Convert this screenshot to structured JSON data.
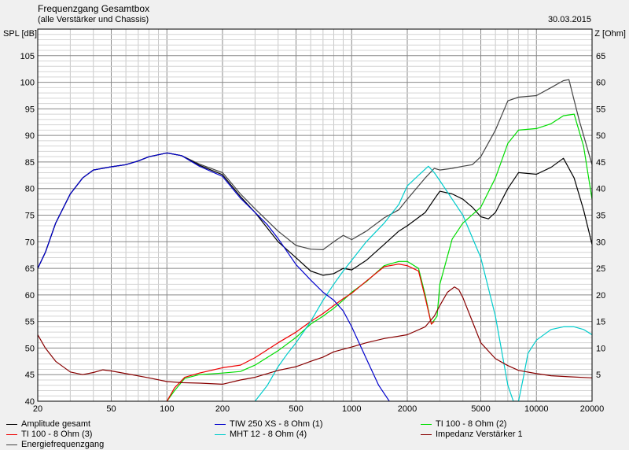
{
  "header": {
    "title": "Frequenzgang Gesamtbox",
    "subtitle": "(alle Verstärker und Chassis)",
    "date": "30.03.2015"
  },
  "chart_data": {
    "type": "line",
    "title": "Frequenzgang Gesamtbox",
    "subtitle": "(alle Verstärker und Chassis)",
    "ylabel": "SPL [dB]",
    "y2label": "Z [Ohm]",
    "xscale": "log",
    "xlim": [
      20,
      20000
    ],
    "ylim": [
      40,
      110
    ],
    "y2lim": [
      0,
      70
    ],
    "x_ticks": [
      20,
      50,
      100,
      200,
      500,
      1000,
      2000,
      5000,
      10000,
      20000
    ],
    "x_tick_labels": [
      "20",
      "50",
      "100",
      "200",
      "500",
      "1000",
      "2000",
      "5000",
      "10000",
      "20000"
    ],
    "y_ticks": [
      40,
      45,
      50,
      55,
      60,
      65,
      70,
      75,
      80,
      85,
      90,
      95,
      100,
      105
    ],
    "y2_ticks": [
      5,
      10,
      15,
      20,
      25,
      30,
      35,
      40,
      45,
      50,
      55,
      60,
      65
    ],
    "grid": true,
    "legend_position": "bottom",
    "series": [
      {
        "name": "Amplitude gesamt",
        "axis": "left",
        "color": "#000000",
        "x": [
          20,
          22,
          25,
          30,
          35,
          40,
          50,
          60,
          70,
          80,
          100,
          120,
          150,
          200,
          250,
          300,
          400,
          500,
          600,
          700,
          800,
          900,
          1000,
          1200,
          1500,
          1800,
          2000,
          2500,
          2800,
          3000,
          3500,
          4000,
          4500,
          5000,
          5500,
          6000,
          7000,
          8000,
          10000,
          12000,
          14000,
          16000,
          18000,
          20000
        ],
        "y": [
          65,
          68,
          73.5,
          79,
          82,
          83.5,
          84.1,
          84.5,
          85.2,
          86,
          86.7,
          86.2,
          84.4,
          82.6,
          78.5,
          75.5,
          70,
          67,
          64.5,
          63.7,
          64,
          65,
          64.7,
          66.5,
          69.5,
          72,
          73,
          75.5,
          78,
          79.5,
          79,
          78,
          76.5,
          74.7,
          74.3,
          75.5,
          80,
          83,
          82.7,
          84,
          85.7,
          82,
          76,
          69.5
        ]
      },
      {
        "name": "TIW 250 XS - 8 Ohm (1)",
        "axis": "left",
        "color": "#0000cc",
        "x": [
          20,
          22,
          25,
          30,
          35,
          40,
          50,
          60,
          70,
          80,
          100,
          120,
          150,
          200,
          250,
          300,
          350,
          400,
          500,
          600,
          700,
          800,
          900,
          1000,
          1200,
          1400,
          1600
        ],
        "y": [
          65,
          68,
          73.5,
          79,
          82,
          83.5,
          84.1,
          84.5,
          85.2,
          86,
          86.7,
          86.2,
          84.2,
          82.3,
          78.2,
          75.5,
          73.2,
          70.6,
          65.7,
          62.8,
          60.5,
          59,
          57,
          54,
          48,
          43,
          40
        ]
      },
      {
        "name": "TI 100 - 8 Ohm (2)",
        "axis": "left",
        "color": "#00dd00",
        "x": [
          100,
          110,
          125,
          150,
          200,
          250,
          300,
          400,
          500,
          600,
          700,
          800,
          900,
          1000,
          1200,
          1500,
          1800,
          2000,
          2300,
          2500,
          2700,
          2900,
          3000,
          3500,
          4000,
          5000,
          6000,
          7000,
          8000,
          10000,
          12000,
          14000,
          16000,
          18000,
          20000
        ],
        "y": [
          40,
          42,
          44.3,
          45,
          45.3,
          45.6,
          46.8,
          49.5,
          52,
          54.5,
          56,
          57.5,
          59,
          60.5,
          62.5,
          65.5,
          66.3,
          66.3,
          65,
          60,
          54.5,
          56,
          62,
          70.5,
          73.5,
          76.5,
          82,
          88.5,
          91,
          91.3,
          92.2,
          93.7,
          94,
          88,
          78
        ]
      },
      {
        "name": "TI 100 - 8 Ohm (3)",
        "axis": "left",
        "color": "#ee0000",
        "x": [
          100,
          110,
          125,
          150,
          200,
          250,
          300,
          400,
          500,
          600,
          700,
          800,
          900,
          1000,
          1200,
          1500,
          1800,
          2000,
          2300,
          2500,
          2700,
          2800
        ],
        "y": [
          40,
          42.5,
          44.5,
          45.3,
          46.3,
          46.8,
          48.2,
          51,
          53,
          55,
          56.5,
          58,
          59.3,
          60.3,
          62.6,
          65.3,
          65.8,
          65.5,
          64.5,
          59.5,
          54.5,
          55
        ]
      },
      {
        "name": "MHT 12 - 8 Ohm (4)",
        "axis": "left",
        "color": "#00cccc",
        "x": [
          300,
          350,
          400,
          450,
          500,
          600,
          700,
          800,
          900,
          1000,
          1200,
          1500,
          1800,
          2000,
          2300,
          2600,
          2800,
          3000,
          3500,
          4000,
          5000,
          6000,
          7000,
          7500,
          8000,
          8500,
          9000,
          10000,
          12000,
          14000,
          16000,
          18000,
          20000
        ],
        "y": [
          40,
          43,
          46.5,
          49,
          51,
          55,
          59,
          62,
          64.5,
          66.5,
          70,
          73.5,
          77,
          80.5,
          82.5,
          84.2,
          83,
          81.5,
          78,
          75,
          67,
          56,
          43,
          40,
          40,
          44.5,
          49,
          51.5,
          53.5,
          54,
          54,
          53.5,
          52.5
        ]
      },
      {
        "name": "Impedanz Verstärker 1",
        "axis": "right",
        "color": "#880000",
        "x": [
          20,
          22,
          25,
          30,
          35,
          40,
          45,
          50,
          60,
          80,
          100,
          120,
          150,
          200,
          250,
          300,
          400,
          500,
          600,
          700,
          800,
          1000,
          1200,
          1500,
          2000,
          2500,
          2800,
          3000,
          3300,
          3600,
          3800,
          4000,
          4500,
          5000,
          6000,
          7000,
          8000,
          10000,
          12000,
          15000,
          20000
        ],
        "y": [
          12.5,
          10,
          7.5,
          5.5,
          5,
          5.4,
          5.9,
          5.7,
          5.2,
          4.4,
          3.7,
          3.5,
          3.4,
          3.2,
          4,
          4.5,
          5.8,
          6.5,
          7.5,
          8.3,
          9.3,
          10.2,
          11,
          11.8,
          12.5,
          14,
          16,
          18,
          20.5,
          21.5,
          21,
          19.5,
          15,
          11,
          8,
          6.7,
          5.8,
          5.2,
          4.8,
          4.6,
          4.4
        ]
      },
      {
        "name": "Energiefrequenzgang",
        "axis": "left",
        "color": "#444444",
        "x": [
          20,
          22,
          25,
          30,
          35,
          40,
          50,
          60,
          70,
          80,
          100,
          120,
          150,
          200,
          250,
          300,
          400,
          500,
          600,
          700,
          800,
          900,
          1000,
          1200,
          1500,
          1800,
          2000,
          2500,
          2800,
          3000,
          3500,
          4000,
          4500,
          5000,
          6000,
          7000,
          8000,
          10000,
          12000,
          14000,
          15000,
          17000,
          20000
        ],
        "y": [
          65,
          68,
          73.5,
          79,
          82,
          83.5,
          84.1,
          84.5,
          85.2,
          86,
          86.7,
          86.2,
          84.6,
          83,
          79,
          76.2,
          72,
          69.3,
          68.6,
          68.5,
          70,
          71.2,
          70.4,
          72,
          74.5,
          76,
          78,
          82,
          83.8,
          83.5,
          83.8,
          84.2,
          84.5,
          86,
          91,
          96.5,
          97.2,
          97.5,
          99,
          100.3,
          100.5,
          93,
          84.5
        ]
      }
    ]
  }
}
